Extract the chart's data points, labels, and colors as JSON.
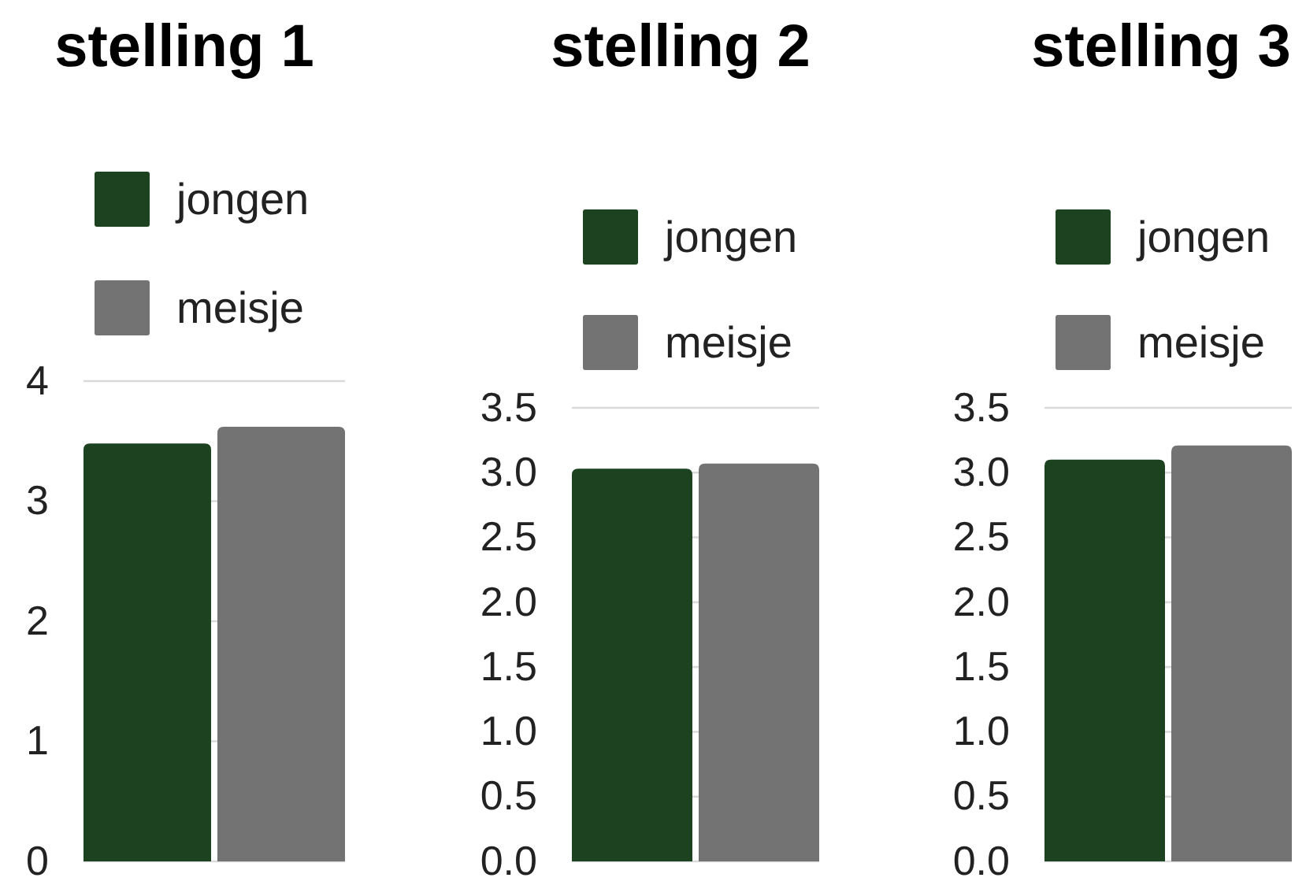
{
  "chart_data": [
    {
      "type": "bar",
      "title": "stelling 1",
      "categories": [
        null
      ],
      "series": [
        {
          "name": "jongen",
          "color": "#1c4220",
          "values": [
            3.48
          ]
        },
        {
          "name": "meisje",
          "color": "#737373",
          "values": [
            3.62
          ]
        }
      ],
      "ylim": [
        0,
        4
      ],
      "yticks": [
        0,
        1,
        2,
        3,
        4
      ],
      "grid": "y",
      "legend": "top left"
    },
    {
      "type": "bar",
      "title": "stelling 2",
      "categories": [
        null
      ],
      "series": [
        {
          "name": "jongen",
          "color": "#1c4220",
          "values": [
            3.03
          ]
        },
        {
          "name": "meisje",
          "color": "#737373",
          "values": [
            3.07
          ]
        }
      ],
      "ylim": [
        0,
        3.5
      ],
      "yticks": [
        {
          "value": 0,
          "label": "0.0"
        },
        0.5,
        {
          "value": 1,
          "label": "1.0"
        },
        1.5,
        {
          "value": 2,
          "label": "2.0"
        },
        2.5,
        {
          "value": 3,
          "label": "3.0"
        },
        3.5
      ],
      "grid": "y",
      "legend": "top left"
    },
    {
      "type": "bar",
      "title": "stelling 3",
      "categories": [
        null
      ],
      "series": [
        {
          "name": "jongen",
          "color": "#1c4220",
          "values": [
            3.1
          ]
        },
        {
          "name": "meisje",
          "color": "#737373",
          "values": [
            3.21
          ]
        }
      ],
      "ylim": [
        0,
        3.5
      ],
      "yticks": [
        {
          "value": 0,
          "label": "0.0"
        },
        0.5,
        {
          "value": 1,
          "label": "1.0"
        },
        1.5,
        {
          "value": 2,
          "label": "2.0"
        },
        2.5,
        {
          "value": 3,
          "label": "3.0"
        },
        3.5
      ],
      "grid": "y",
      "legend": "top left"
    }
  ]
}
